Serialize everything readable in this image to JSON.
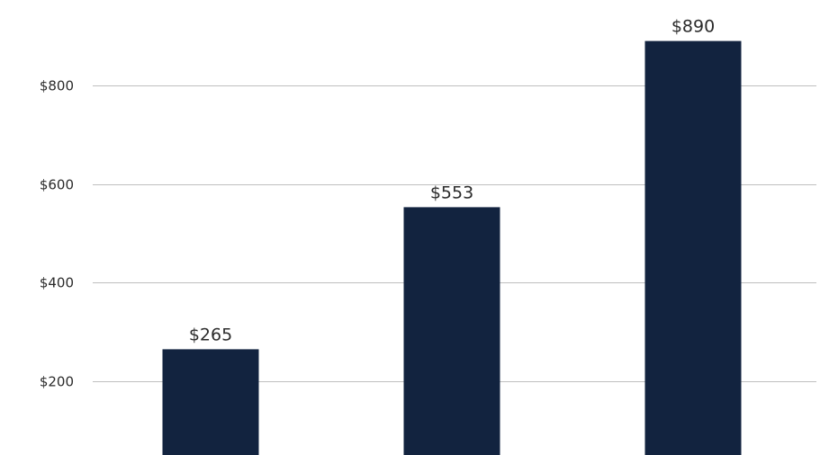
{
  "chart_data": {
    "type": "bar",
    "categories": [
      "",
      "",
      ""
    ],
    "values": [
      265,
      553,
      890
    ],
    "data_labels": [
      "$265",
      "$553",
      "$890"
    ],
    "title": "",
    "xlabel": "",
    "ylabel": "",
    "ylim": [
      50,
      950
    ],
    "y_ticks": [
      200,
      400,
      600,
      800
    ],
    "y_tick_labels": [
      "$200",
      "$400",
      "$600",
      "$800"
    ],
    "grid": true,
    "legend": "none",
    "bar_color": "#12233f",
    "grid_color": "#bfbfbf"
  }
}
